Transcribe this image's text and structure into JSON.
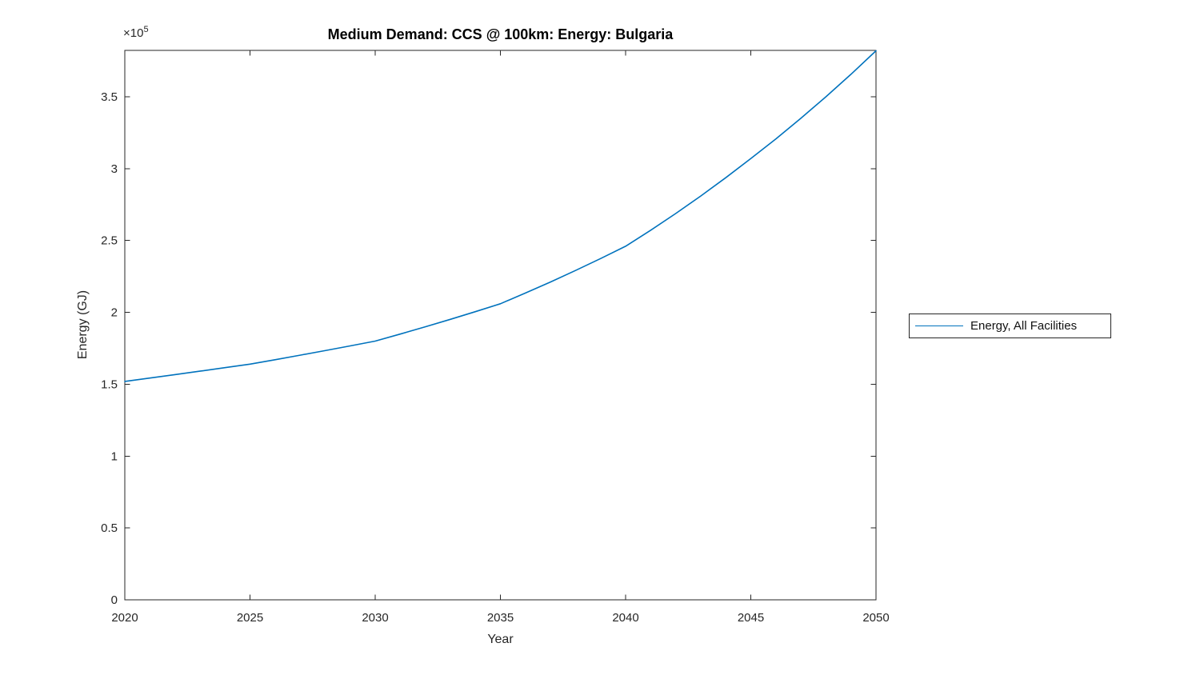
{
  "figure": {
    "background": "#ffffff"
  },
  "chart_data": {
    "type": "line",
    "title": "Medium Demand: CCS @ 100km: Energy: Bulgaria",
    "xlabel": "Year",
    "ylabel": "Energy (GJ)",
    "y_axis_multiplier": {
      "base": "×10",
      "exponent": "5"
    },
    "x": [
      2020,
      2025,
      2030,
      2035,
      2040,
      2045,
      2050
    ],
    "series": [
      {
        "name": "Energy, All Facilities",
        "color": "#0072BD",
        "values": [
          152000,
          164000,
          180000,
          206000,
          246000,
          307000,
          382000
        ]
      }
    ],
    "xlim": [
      2020,
      2050
    ],
    "ylim": [
      0,
      382300
    ],
    "x_tick_labels": [
      "2020",
      "2025",
      "2030",
      "2035",
      "2040",
      "2045",
      "2050"
    ],
    "y_tick_values": [
      0,
      50000,
      100000,
      150000,
      200000,
      250000,
      300000,
      350000
    ],
    "y_tick_labels": [
      "0",
      "0.5",
      "1",
      "1.5",
      "2",
      "2.5",
      "3",
      "3.5"
    ],
    "grid": false,
    "axis_color": "#262626",
    "legend": {
      "position": "outside-right",
      "entries": [
        {
          "label": "Energy, All Facilities",
          "color": "#0072BD"
        }
      ]
    }
  }
}
